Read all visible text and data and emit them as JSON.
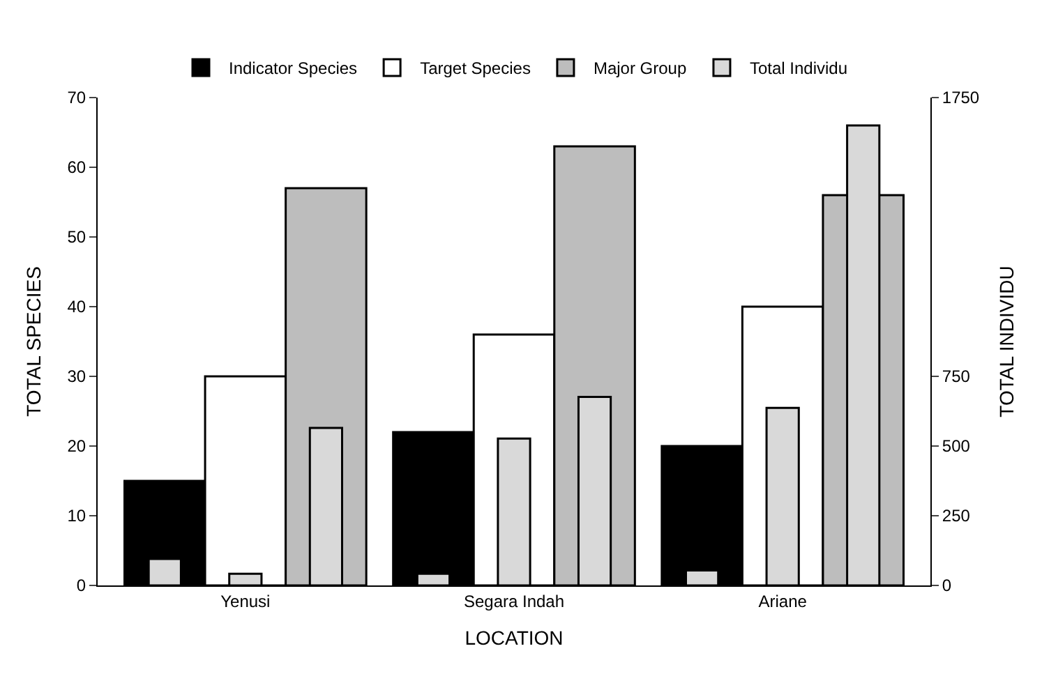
{
  "chart_data": {
    "type": "bar",
    "xlabel": "LOCATION",
    "ylabel": "TOTAL SPECIES",
    "y2label": "TOTAL INDIVIDU",
    "categories": [
      "Yenusi",
      "Segara Indah",
      "Ariane"
    ],
    "series": [
      {
        "name": "Indicator Species",
        "color": "#000000",
        "values": [
          15,
          22,
          20
        ]
      },
      {
        "name": "Target Species",
        "color": "#ffffff",
        "values": [
          30,
          36,
          40
        ]
      },
      {
        "name": "Major Group",
        "color": "#bdbdbd",
        "values": [
          57,
          63,
          56
        ]
      },
      {
        "name": "Total Individu",
        "color": "#d9d9d9",
        "axis": "y2",
        "values": [
          95,
          42,
          54
        ]
      },
      {
        "color": "#d9d9d9",
        "axis": "y2",
        "values": [
          42,
          527,
          637
        ]
      },
      {
        "color": "#d9d9d9",
        "axis": "y2",
        "values": [
          565,
          676,
          1650
        ]
      }
    ],
    "ylim": [
      0,
      70
    ],
    "yticks": [
      0,
      10,
      20,
      30,
      40,
      50,
      60,
      70
    ],
    "y2lim": [
      0,
      1750
    ],
    "y2ticks": [
      0,
      250,
      500,
      750,
      1750
    ],
    "legend": "top"
  }
}
